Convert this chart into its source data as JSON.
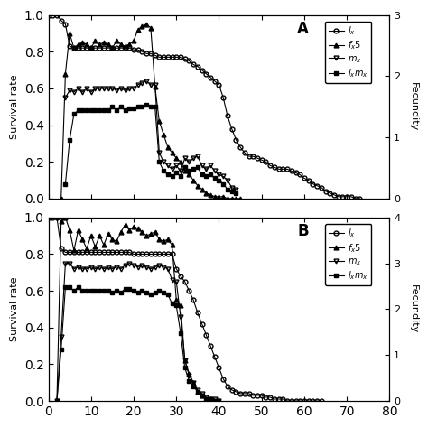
{
  "panel_A": {
    "label": "A",
    "xlim": [
      0,
      80
    ],
    "ylim_left": [
      0.0,
      1.0
    ],
    "ylim_right": [
      0,
      3
    ],
    "yticks_right": [
      0,
      1,
      2,
      3
    ],
    "lx": {
      "x": [
        0,
        1,
        2,
        3,
        4,
        5,
        6,
        7,
        8,
        9,
        10,
        11,
        12,
        13,
        14,
        15,
        16,
        17,
        18,
        19,
        20,
        21,
        22,
        23,
        24,
        25,
        26,
        27,
        28,
        29,
        30,
        31,
        32,
        33,
        34,
        35,
        36,
        37,
        38,
        39,
        40,
        41,
        42,
        43,
        44,
        45,
        46,
        47,
        48,
        49,
        50,
        51,
        52,
        53,
        54,
        55,
        56,
        57,
        58,
        59,
        60,
        61,
        62,
        63,
        64,
        65,
        66,
        67,
        68,
        69,
        70,
        71,
        72,
        73
      ],
      "y": [
        1.0,
        1.0,
        1.0,
        0.97,
        0.95,
        0.83,
        0.82,
        0.82,
        0.82,
        0.82,
        0.82,
        0.82,
        0.82,
        0.82,
        0.82,
        0.82,
        0.82,
        0.82,
        0.82,
        0.82,
        0.81,
        0.81,
        0.8,
        0.79,
        0.79,
        0.78,
        0.77,
        0.77,
        0.77,
        0.77,
        0.77,
        0.77,
        0.76,
        0.75,
        0.73,
        0.72,
        0.7,
        0.68,
        0.66,
        0.64,
        0.62,
        0.55,
        0.45,
        0.38,
        0.32,
        0.28,
        0.25,
        0.23,
        0.23,
        0.22,
        0.21,
        0.2,
        0.18,
        0.17,
        0.16,
        0.16,
        0.16,
        0.15,
        0.14,
        0.13,
        0.11,
        0.1,
        0.08,
        0.07,
        0.06,
        0.04,
        0.03,
        0.02,
        0.01,
        0.01,
        0.01,
        0.01,
        0.0,
        0.0
      ]
    },
    "fx5": {
      "x": [
        3,
        4,
        5,
        6,
        7,
        8,
        9,
        10,
        11,
        12,
        13,
        14,
        15,
        16,
        17,
        18,
        19,
        20,
        21,
        22,
        23,
        24,
        25,
        26,
        27,
        28,
        29,
        30,
        31,
        32,
        33,
        34,
        35,
        36,
        37,
        38,
        39,
        40,
        41,
        42,
        43,
        44,
        45
      ],
      "y": [
        0.0,
        0.68,
        0.9,
        0.82,
        0.84,
        0.85,
        0.84,
        0.82,
        0.86,
        0.84,
        0.85,
        0.84,
        0.82,
        0.86,
        0.84,
        0.83,
        0.84,
        0.86,
        0.92,
        0.94,
        0.95,
        0.93,
        0.61,
        0.42,
        0.35,
        0.28,
        0.25,
        0.22,
        0.2,
        0.15,
        0.13,
        0.1,
        0.07,
        0.05,
        0.03,
        0.02,
        0.01,
        0.01,
        0.01,
        0.0,
        0.0,
        0.0,
        0.0
      ]
    },
    "mx": {
      "x": [
        4,
        5,
        6,
        7,
        8,
        9,
        10,
        11,
        12,
        13,
        14,
        15,
        16,
        17,
        18,
        19,
        20,
        21,
        22,
        23,
        24,
        25,
        26,
        27,
        28,
        29,
        30,
        31,
        32,
        33,
        34,
        35,
        36,
        37,
        38,
        39,
        40,
        41,
        42,
        43,
        44
      ],
      "y": [
        0.55,
        0.59,
        0.58,
        0.6,
        0.58,
        0.6,
        0.58,
        0.6,
        0.6,
        0.6,
        0.6,
        0.6,
        0.59,
        0.6,
        0.59,
        0.6,
        0.6,
        0.62,
        0.63,
        0.64,
        0.62,
        0.62,
        0.25,
        0.2,
        0.18,
        0.16,
        0.18,
        0.15,
        0.22,
        0.2,
        0.22,
        0.23,
        0.18,
        0.16,
        0.18,
        0.15,
        0.13,
        0.12,
        0.1,
        0.06,
        0.05
      ]
    },
    "lxmx": {
      "x": [
        4,
        5,
        6,
        7,
        8,
        9,
        10,
        11,
        12,
        13,
        14,
        15,
        16,
        17,
        18,
        19,
        20,
        21,
        22,
        23,
        24,
        25,
        26,
        27,
        28,
        29,
        30,
        31,
        32,
        33,
        34,
        35,
        36,
        37,
        38,
        39,
        40,
        41,
        42,
        43,
        44
      ],
      "y": [
        0.08,
        0.32,
        0.46,
        0.48,
        0.48,
        0.48,
        0.48,
        0.48,
        0.48,
        0.48,
        0.48,
        0.5,
        0.48,
        0.5,
        0.48,
        0.49,
        0.49,
        0.5,
        0.5,
        0.51,
        0.5,
        0.5,
        0.2,
        0.15,
        0.13,
        0.12,
        0.14,
        0.12,
        0.17,
        0.15,
        0.16,
        0.17,
        0.13,
        0.12,
        0.13,
        0.11,
        0.1,
        0.08,
        0.05,
        0.04,
        0.03
      ]
    }
  },
  "panel_B": {
    "label": "B",
    "xlim": [
      0,
      80
    ],
    "ylim_left": [
      0.0,
      1.0
    ],
    "ylim_right": [
      0,
      4
    ],
    "yticks_right": [
      0,
      1,
      2,
      3,
      4
    ],
    "lx": {
      "x": [
        0,
        1,
        2,
        3,
        4,
        5,
        6,
        7,
        8,
        9,
        10,
        11,
        12,
        13,
        14,
        15,
        16,
        17,
        18,
        19,
        20,
        21,
        22,
        23,
        24,
        25,
        26,
        27,
        28,
        29,
        30,
        31,
        32,
        33,
        34,
        35,
        36,
        37,
        38,
        39,
        40,
        41,
        42,
        43,
        44,
        45,
        46,
        47,
        48,
        49,
        50,
        51,
        52,
        53,
        54,
        55,
        56,
        57,
        58,
        59,
        60,
        61,
        62,
        63,
        64
      ],
      "y": [
        1.0,
        1.0,
        1.0,
        0.83,
        0.81,
        0.81,
        0.81,
        0.81,
        0.81,
        0.81,
        0.81,
        0.81,
        0.81,
        0.81,
        0.81,
        0.81,
        0.81,
        0.81,
        0.81,
        0.81,
        0.8,
        0.8,
        0.8,
        0.8,
        0.8,
        0.8,
        0.8,
        0.8,
        0.8,
        0.8,
        0.72,
        0.68,
        0.65,
        0.6,
        0.55,
        0.48,
        0.42,
        0.36,
        0.3,
        0.24,
        0.18,
        0.12,
        0.08,
        0.06,
        0.05,
        0.04,
        0.04,
        0.04,
        0.03,
        0.03,
        0.03,
        0.02,
        0.02,
        0.01,
        0.01,
        0.01,
        0.0,
        0.0,
        0.0,
        0.0,
        0.0,
        0.0,
        0.0,
        0.0,
        0.0
      ]
    },
    "fx5": {
      "x": [
        2,
        3,
        4,
        5,
        6,
        7,
        8,
        9,
        10,
        11,
        12,
        13,
        14,
        15,
        16,
        17,
        18,
        19,
        20,
        21,
        22,
        23,
        24,
        25,
        26,
        27,
        28,
        29,
        30,
        31,
        32,
        33,
        34,
        35,
        36,
        37,
        38,
        39,
        40
      ],
      "y": [
        0.0,
        0.98,
        1.0,
        0.93,
        0.82,
        0.93,
        0.88,
        0.83,
        0.9,
        0.84,
        0.9,
        0.85,
        0.91,
        0.88,
        0.87,
        0.92,
        0.96,
        0.93,
        0.95,
        0.94,
        0.92,
        0.9,
        0.91,
        0.92,
        0.88,
        0.87,
        0.88,
        0.85,
        0.55,
        0.52,
        0.22,
        0.15,
        0.1,
        0.05,
        0.03,
        0.01,
        0.01,
        0.0,
        0.0
      ]
    },
    "mx": {
      "x": [
        2,
        3,
        4,
        5,
        6,
        7,
        8,
        9,
        10,
        11,
        12,
        13,
        14,
        15,
        16,
        17,
        18,
        19,
        20,
        21,
        22,
        23,
        24,
        25,
        26,
        27,
        28,
        29,
        30,
        31,
        32,
        33,
        34,
        35,
        36,
        37,
        38,
        39,
        40
      ],
      "y": [
        0.0,
        0.35,
        0.75,
        0.75,
        0.72,
        0.73,
        0.72,
        0.72,
        0.73,
        0.72,
        0.73,
        0.72,
        0.73,
        0.72,
        0.73,
        0.72,
        0.74,
        0.75,
        0.74,
        0.73,
        0.74,
        0.73,
        0.72,
        0.73,
        0.74,
        0.73,
        0.72,
        0.66,
        0.65,
        0.46,
        0.22,
        0.14,
        0.1,
        0.06,
        0.04,
        0.02,
        0.01,
        0.01,
        0.0
      ]
    },
    "lxmx": {
      "x": [
        2,
        3,
        4,
        5,
        6,
        7,
        8,
        9,
        10,
        11,
        12,
        13,
        14,
        15,
        16,
        17,
        18,
        19,
        20,
        21,
        22,
        23,
        24,
        25,
        26,
        27,
        28,
        29,
        30,
        31,
        32,
        33,
        34,
        35,
        36,
        37,
        38,
        39,
        40
      ],
      "y": [
        0.0,
        0.28,
        0.62,
        0.62,
        0.6,
        0.62,
        0.6,
        0.6,
        0.6,
        0.6,
        0.6,
        0.6,
        0.6,
        0.59,
        0.6,
        0.59,
        0.61,
        0.61,
        0.6,
        0.59,
        0.6,
        0.59,
        0.58,
        0.59,
        0.6,
        0.59,
        0.58,
        0.53,
        0.52,
        0.37,
        0.18,
        0.11,
        0.08,
        0.05,
        0.03,
        0.01,
        0.01,
        0.0,
        0.0
      ]
    }
  },
  "ylabel_left": "Survival rate",
  "ylabel_right": "Fecundity",
  "xticks": [
    0,
    10,
    20,
    30,
    40,
    50,
    60,
    70,
    80
  ],
  "yticks_left": [
    0.0,
    0.2,
    0.4,
    0.6,
    0.8,
    1.0
  ],
  "figsize": [
    4.74,
    4.74
  ],
  "dpi": 100
}
